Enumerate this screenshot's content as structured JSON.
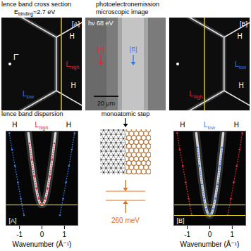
{
  "figure": {
    "cross_section_panels": [
      {
        "title": "lence band cross section",
        "energy_label": {
          "symbol": "E",
          "subscript": "binding",
          "text": "=2.7 eV"
        },
        "panel_label": "[A]",
        "center_label": "Γ̄",
        "labels": [
          {
            "text": "H",
            "color": "#ffffff"
          },
          {
            "text": "L",
            "subscript": "high",
            "color": "#e0283c"
          },
          {
            "text": "H",
            "color": "#ffffff"
          },
          {
            "text": "L",
            "subscript": "low",
            "color": "#3a78e6"
          }
        ]
      },
      {
        "panel_label": "[B]",
        "labels": [
          {
            "text": "H",
            "color": "#ffffff"
          },
          {
            "text": "L",
            "subscript": "low",
            "color": "#3a78e6"
          },
          {
            "text": "H",
            "color": "#ffffff"
          },
          {
            "text": "L",
            "subscript": "high",
            "color": "#e0283c"
          }
        ]
      }
    ],
    "peem_panel": {
      "title": "photoelectronemission microscopic image",
      "photon_energy": "hν 68 eV",
      "markers": [
        {
          "text": "[A]",
          "color": "#e0283c"
        },
        {
          "text": "[B]",
          "color": "#3a78e6"
        }
      ],
      "scale_bar": "20 μm"
    },
    "step_panel": {
      "title": "monoatomic step",
      "energy_difference": {
        "value": 260,
        "label": "260 meV",
        "color": "#e0701c"
      }
    }
  },
  "chart_data": [
    {
      "type": "line",
      "title": "lence band dispersion",
      "x_label": "Wavenumber (Å⁻¹)",
      "xlim": [
        -1.6,
        1.6
      ],
      "xticks": [
        -1,
        0,
        1
      ],
      "ylim": [
        -2.1,
        0.2
      ],
      "tick_labels": "x",
      "panel_label": "[A]",
      "top_labels": [
        {
          "text": "H",
          "x": -1.2,
          "color": "#000000"
        },
        {
          "text": "L",
          "subscript": "high",
          "x": 0,
          "color": "#e0283c"
        },
        {
          "text": "H",
          "x": 1.2,
          "color": "#000000"
        }
      ],
      "reference_lines": {
        "values": [
          -1.6
        ],
        "color": "#d8c41c"
      },
      "series": [
        {
          "color": "#f2f2f2",
          "line_style": "solid",
          "x": [
            -0.6,
            -0.5,
            -0.4,
            -0.3,
            -0.2,
            -0.1,
            0,
            0.1,
            0.2,
            0.3,
            0.4,
            0.5,
            0.6
          ],
          "values": [
            0.15,
            -0.3,
            -0.7,
            -1.05,
            -1.35,
            -1.54,
            -1.6,
            -1.54,
            -1.35,
            -1.05,
            -0.7,
            -0.3,
            0.15
          ]
        },
        {
          "color": "#e0283c",
          "marker": "dot",
          "line_style": "dotted",
          "x": [
            -0.55,
            -0.45,
            -0.35,
            -0.25,
            -0.15,
            -0.05,
            0.05,
            0.15,
            0.25,
            0.35,
            0.45,
            0.55
          ],
          "values": [
            -0.1,
            -0.5,
            -0.9,
            -1.2,
            -1.45,
            -1.58,
            -1.58,
            -1.45,
            -1.2,
            -0.9,
            -0.5,
            -0.1
          ]
        },
        {
          "color": "#3a78e6",
          "marker": "dot",
          "line_style": "dotted",
          "x": [
            -1.45,
            -1.33,
            -1.2,
            -1.07,
            -0.94,
            -0.8,
            null,
            0.8,
            0.94,
            1.07,
            1.2,
            1.33,
            1.45
          ],
          "values": [
            0.15,
            -0.25,
            -0.65,
            -1.05,
            -1.45,
            -1.85,
            null,
            -1.85,
            -1.45,
            -1.05,
            -0.65,
            -0.25,
            0.15
          ]
        }
      ]
    },
    {
      "type": "line",
      "x_label": "Wavenumber (Å⁻¹)",
      "xlim": [
        -1.6,
        1.6
      ],
      "xticks": [
        -1,
        0,
        1
      ],
      "ylim": [
        -2.1,
        0.2
      ],
      "tick_labels": "x",
      "panel_label": "[B]",
      "top_labels": [
        {
          "text": "H",
          "x": -1.2,
          "color": "#000000"
        },
        {
          "text": "L",
          "subscript": "low",
          "x": 0,
          "color": "#3a78e6"
        },
        {
          "text": "H",
          "x": 1.2,
          "color": "#000000"
        }
      ],
      "reference_lines": {
        "values": [
          -1.6,
          -1.86
        ],
        "color": "#d8c41c"
      },
      "series": [
        {
          "color": "#f2f2f2",
          "line_style": "solid",
          "x": [
            -0.6,
            -0.5,
            -0.4,
            -0.3,
            -0.2,
            -0.1,
            0,
            0.1,
            0.2,
            0.3,
            0.4,
            0.5,
            0.6
          ],
          "values": [
            0.15,
            -0.35,
            -0.85,
            -1.25,
            -1.58,
            -1.79,
            -1.86,
            -1.79,
            -1.58,
            -1.25,
            -0.85,
            -0.35,
            0.15
          ]
        },
        {
          "color": "#3a78e6",
          "marker": "dot",
          "line_style": "dotted",
          "x": [
            -0.55,
            -0.45,
            -0.35,
            -0.25,
            -0.15,
            -0.05,
            0.05,
            0.15,
            0.25,
            0.35,
            0.45,
            0.55
          ],
          "values": [
            -0.2,
            -0.65,
            -1.1,
            -1.45,
            -1.7,
            -1.84,
            -1.84,
            -1.7,
            -1.45,
            -1.1,
            -0.65,
            -0.2
          ]
        },
        {
          "color": "#e0283c",
          "marker": "dot",
          "line_style": "dotted",
          "x": [
            -1.45,
            -1.33,
            -1.2,
            -1.07,
            -0.94,
            -0.8,
            null,
            0.8,
            0.94,
            1.07,
            1.2,
            1.33,
            1.45
          ],
          "values": [
            0.15,
            -0.25,
            -0.65,
            -1.05,
            -1.45,
            -1.85,
            null,
            -1.85,
            -1.45,
            -1.05,
            -0.65,
            -0.25,
            0.15
          ]
        }
      ]
    }
  ]
}
